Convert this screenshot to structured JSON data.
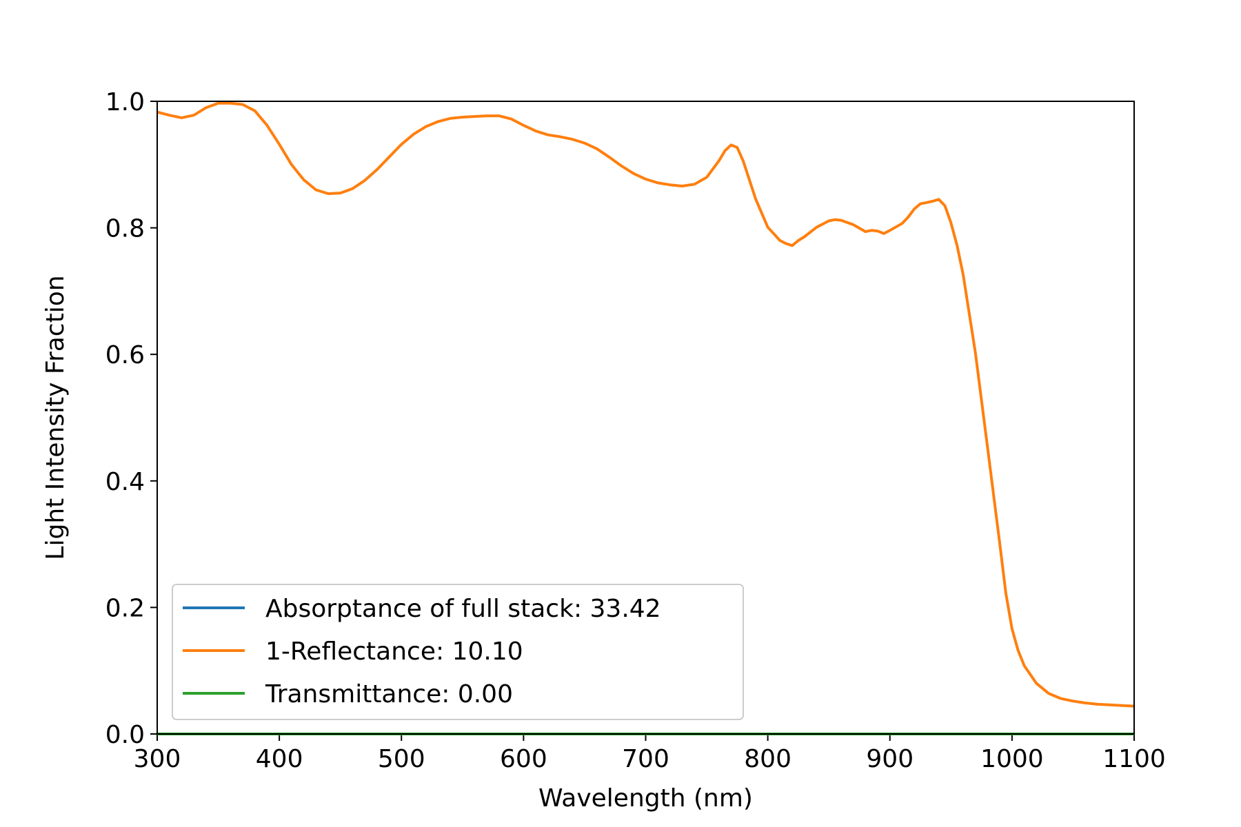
{
  "chart_data": {
    "type": "line",
    "title": "",
    "xlabel": "Wavelength (nm)",
    "ylabel": "Light Intensity Fraction",
    "xlim": [
      300,
      1100
    ],
    "ylim": [
      0.0,
      1.0
    ],
    "x_ticks": [
      "300",
      "400",
      "500",
      "600",
      "700",
      "800",
      "900",
      "1000",
      "1100"
    ],
    "y_ticks": [
      "0.0",
      "0.2",
      "0.4",
      "0.6",
      "0.8",
      "1.0"
    ],
    "grid": false,
    "legend_position": "lower-left",
    "series": [
      {
        "name": "Absorptance of full stack: 33.42",
        "color": "#1f77b4",
        "x": [
          300,
          1100
        ],
        "y": [
          0.0,
          0.0
        ]
      },
      {
        "name": "1-Reflectance: 10.10",
        "color": "#ff7f0e",
        "x": [
          300,
          310,
          320,
          330,
          340,
          350,
          360,
          370,
          380,
          390,
          400,
          410,
          420,
          430,
          440,
          450,
          460,
          470,
          480,
          490,
          500,
          510,
          520,
          530,
          540,
          550,
          560,
          570,
          580,
          590,
          600,
          610,
          620,
          630,
          640,
          650,
          660,
          670,
          680,
          690,
          700,
          710,
          720,
          730,
          740,
          750,
          760,
          765,
          770,
          775,
          780,
          790,
          800,
          810,
          815,
          820,
          825,
          830,
          840,
          850,
          855,
          860,
          870,
          880,
          885,
          890,
          895,
          900,
          910,
          915,
          920,
          925,
          930,
          935,
          940,
          945,
          950,
          955,
          960,
          970,
          980,
          990,
          995,
          1000,
          1005,
          1010,
          1020,
          1030,
          1040,
          1050,
          1060,
          1070,
          1080,
          1090,
          1100
        ],
        "y": [
          0.983,
          0.978,
          0.974,
          0.978,
          0.99,
          0.997,
          0.997,
          0.995,
          0.985,
          0.962,
          0.932,
          0.9,
          0.876,
          0.86,
          0.854,
          0.855,
          0.862,
          0.875,
          0.892,
          0.912,
          0.932,
          0.948,
          0.96,
          0.968,
          0.973,
          0.975,
          0.976,
          0.977,
          0.977,
          0.972,
          0.962,
          0.953,
          0.947,
          0.944,
          0.94,
          0.934,
          0.925,
          0.912,
          0.898,
          0.886,
          0.877,
          0.871,
          0.868,
          0.866,
          0.869,
          0.88,
          0.906,
          0.922,
          0.931,
          0.927,
          0.905,
          0.846,
          0.801,
          0.78,
          0.775,
          0.772,
          0.78,
          0.786,
          0.801,
          0.811,
          0.813,
          0.812,
          0.805,
          0.794,
          0.796,
          0.795,
          0.791,
          0.796,
          0.807,
          0.817,
          0.83,
          0.838,
          0.84,
          0.842,
          0.845,
          0.835,
          0.808,
          0.772,
          0.726,
          0.603,
          0.452,
          0.3,
          0.222,
          0.166,
          0.132,
          0.108,
          0.08,
          0.064,
          0.056,
          0.052,
          0.049,
          0.047,
          0.046,
          0.045,
          0.044
        ]
      },
      {
        "name": "Transmittance: 0.00",
        "color": "#2ca02c",
        "x": [
          300,
          1100
        ],
        "y": [
          0.0,
          0.0
        ]
      }
    ]
  }
}
